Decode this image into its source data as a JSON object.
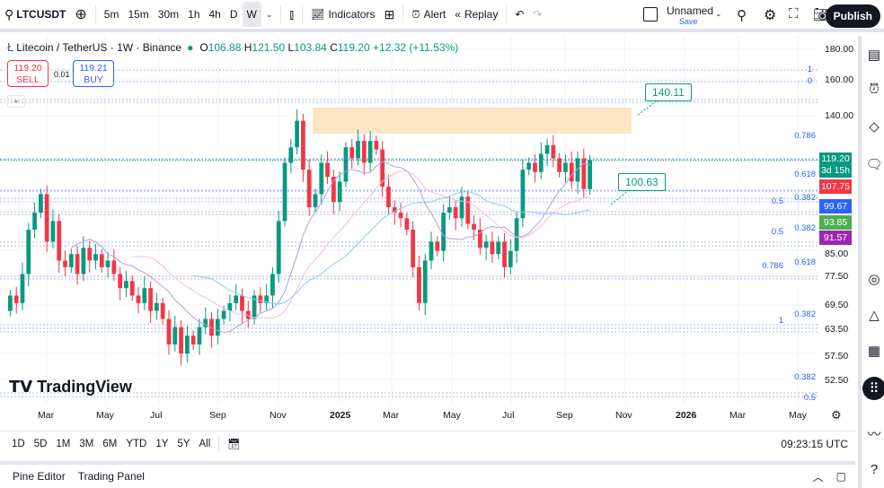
{
  "toolbar": {
    "symbol": "LTCUSDT",
    "intervals": [
      "5m",
      "15m",
      "30m",
      "1h",
      "4h",
      "D",
      "W"
    ],
    "active_interval": "W",
    "indicators": "Indicators",
    "alert": "Alert",
    "replay": "Replay",
    "layout_name": "Unnamed",
    "layout_save": "Save",
    "publish": "Publish"
  },
  "legend": {
    "title": "Litecoin / TetherUS · 1W · Binance",
    "o_label": "O",
    "o": "106.88",
    "h_label": "H",
    "h": "121.50",
    "l_label": "L",
    "l": "103.84",
    "c_label": "C",
    "c": "119.20",
    "change": "+12.32 (+11.53%)"
  },
  "trade": {
    "sell_price": "119.20",
    "sell": "SELL",
    "spread": "0.01",
    "buy_price": "119.21",
    "buy": "BUY"
  },
  "price_axis": [
    "180.00",
    "160.00",
    "140.00",
    "85.00",
    "77.50",
    "69.50",
    "63.50",
    "57.50",
    "52.50"
  ],
  "price_tags": {
    "last": "119.20",
    "countdown": "3d 15h",
    "red": "107.75",
    "blue": "99.67",
    "green": "93.85",
    "purple": "91.57"
  },
  "fib_labels": [
    "1",
    "0",
    "0.786",
    "0.618",
    "0.382",
    "0.5",
    "0.382",
    "0.5",
    "0.618",
    "0.786",
    "0.382",
    "1",
    "0.382",
    "0.5"
  ],
  "callouts": {
    "upper": "140.11",
    "lower": "100.63"
  },
  "time_axis": [
    "Mar",
    "May",
    "Jul",
    "Sep",
    "Nov",
    "2025",
    "Mar",
    "May",
    "Jul",
    "Sep",
    "Nov",
    "2026",
    "Mar",
    "May"
  ],
  "ranges": [
    "1D",
    "5D",
    "1M",
    "3M",
    "6M",
    "YTD",
    "1Y",
    "5Y",
    "All"
  ],
  "clock": "09:23:15 UTC",
  "footer": {
    "pine": "Pine Editor",
    "panel": "Trading Panel"
  },
  "logo": "TradingView",
  "colors": {
    "up": "#089981",
    "down": "#f23645",
    "zone": "#fde5c4"
  },
  "chart_data": {
    "type": "candlestick",
    "first_open": 68,
    "closes": [
      72,
      70,
      78,
      92,
      98,
      105,
      88,
      95,
      82,
      80,
      84,
      78,
      86,
      82,
      84,
      80,
      82,
      78,
      74,
      76,
      72,
      70,
      74,
      68,
      70,
      66,
      60,
      64,
      58,
      62,
      60,
      64,
      66,
      62,
      66,
      68,
      70,
      72,
      68,
      66,
      72,
      70,
      72,
      78,
      95,
      118,
      125,
      138,
      115,
      100,
      105,
      118,
      112,
      102,
      110,
      125,
      120,
      128,
      118,
      128,
      124,
      108,
      100,
      98,
      96,
      92,
      80,
      70,
      82,
      88,
      85,
      98,
      100,
      96,
      104,
      94,
      92,
      86,
      88,
      84,
      88,
      80,
      85,
      96,
      115,
      118,
      114,
      122,
      126,
      120,
      114,
      118,
      110,
      120,
      107,
      119.2
    ],
    "ylim": [
      50,
      185
    ],
    "scale": "log"
  }
}
